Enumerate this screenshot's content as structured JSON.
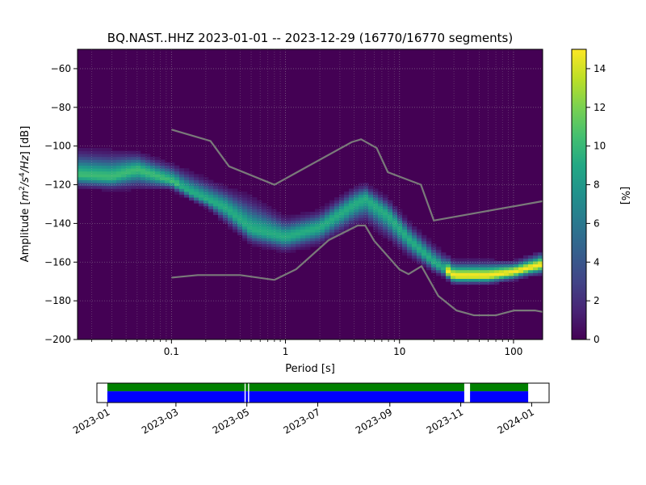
{
  "chart_data": {
    "type": "heatmap",
    "title": "BQ.NAST..HHZ   2023-01-01 -- 2023-12-29  (16770/16770 segments)",
    "xlabel": "Period [s]",
    "ylabel_prefix": "Amplitude [",
    "ylabel_unit_base": "m",
    "ylabel_sup1": "2",
    "ylabel_slash": "/s",
    "ylabel_sup2": "4",
    "ylabel_tail": "/Hz",
    "ylabel_suffix": "] [dB]",
    "x_scale": "log",
    "xlim": [
      0.015,
      180
    ],
    "ylim": [
      -200,
      -50
    ],
    "x_ticks": [
      {
        "value": 0.1,
        "label": "0.1"
      },
      {
        "value": 1,
        "label": "1"
      },
      {
        "value": 10,
        "label": "10"
      },
      {
        "value": 100,
        "label": "100"
      }
    ],
    "y_ticks": [
      {
        "value": -60,
        "label": "−60"
      },
      {
        "value": -80,
        "label": "−80"
      },
      {
        "value": -100,
        "label": "−100"
      },
      {
        "value": -120,
        "label": "−120"
      },
      {
        "value": -140,
        "label": "−140"
      },
      {
        "value": -160,
        "label": "−160"
      },
      {
        "value": -180,
        "label": "−180"
      },
      {
        "value": -200,
        "label": "−200"
      }
    ],
    "grid": true,
    "colormap": "viridis",
    "colorbar": {
      "label": "[%]",
      "range": [
        0,
        15
      ],
      "ticks": [
        {
          "value": 0,
          "label": "0"
        },
        {
          "value": 2,
          "label": "2"
        },
        {
          "value": 4,
          "label": "4"
        },
        {
          "value": 6,
          "label": "6"
        },
        {
          "value": 8,
          "label": "8"
        },
        {
          "value": 10,
          "label": "10"
        },
        {
          "value": 12,
          "label": "12"
        },
        {
          "value": 14,
          "label": "14"
        }
      ]
    },
    "density_ridge": {
      "description_free": true,
      "center_db": [
        [
          0.016,
          -115
        ],
        [
          0.03,
          -116
        ],
        [
          0.05,
          -112
        ],
        [
          0.1,
          -118
        ],
        [
          0.15,
          -124
        ],
        [
          0.3,
          -132
        ],
        [
          0.5,
          -143
        ],
        [
          1.0,
          -147
        ],
        [
          2.0,
          -142
        ],
        [
          4.0,
          -130
        ],
        [
          5.0,
          -127
        ],
        [
          8.0,
          -136
        ],
        [
          12.0,
          -148
        ],
        [
          20.0,
          -160
        ],
        [
          30.0,
          -167
        ],
        [
          60.0,
          -167
        ],
        [
          100.0,
          -165
        ],
        [
          180.0,
          -161
        ]
      ],
      "upper_db": [
        [
          0.016,
          -103
        ],
        [
          0.03,
          -104
        ],
        [
          0.05,
          -104
        ],
        [
          0.1,
          -110
        ],
        [
          0.2,
          -118
        ],
        [
          0.5,
          -128
        ],
        [
          1.0,
          -138
        ],
        [
          2.0,
          -134
        ],
        [
          4.0,
          -122
        ],
        [
          5.0,
          -120
        ],
        [
          8.0,
          -128
        ],
        [
          12.0,
          -140
        ],
        [
          20.0,
          -152
        ],
        [
          30.0,
          -160
        ],
        [
          100.0,
          -160
        ],
        [
          180.0,
          -155
        ]
      ],
      "lower_db": [
        [
          0.016,
          -121
        ],
        [
          0.03,
          -122
        ],
        [
          0.05,
          -121
        ],
        [
          0.1,
          -122
        ],
        [
          0.2,
          -131
        ],
        [
          0.5,
          -150
        ],
        [
          1.0,
          -154
        ],
        [
          2.0,
          -150
        ],
        [
          4.0,
          -140
        ],
        [
          5.0,
          -138
        ],
        [
          8.0,
          -147
        ],
        [
          12.0,
          -156
        ],
        [
          20.0,
          -165
        ],
        [
          30.0,
          -170
        ],
        [
          100.0,
          -168
        ],
        [
          180.0,
          -166
        ]
      ],
      "peak_percent": 15
    },
    "noise_models": {
      "color": "#7a7a7a",
      "high": [
        [
          0.1,
          -91.5
        ],
        [
          0.22,
          -97.4
        ],
        [
          0.32,
          -110.5
        ],
        [
          0.8,
          -120
        ],
        [
          3.8,
          -98
        ],
        [
          4.6,
          -96.5
        ],
        [
          6.3,
          -101
        ],
        [
          7.9,
          -113.5
        ],
        [
          15.4,
          -120
        ],
        [
          20,
          -138.5
        ],
        [
          180,
          -128.5
        ]
      ],
      "low": [
        [
          0.1,
          -168
        ],
        [
          0.17,
          -166.7
        ],
        [
          0.4,
          -166.7
        ],
        [
          0.8,
          -169.2
        ],
        [
          1.24,
          -163.7
        ],
        [
          2.4,
          -148.6
        ],
        [
          4.3,
          -141.1
        ],
        [
          5.0,
          -141.1
        ],
        [
          6.0,
          -149.0
        ],
        [
          10.0,
          -163.8
        ],
        [
          12.0,
          -166.2
        ],
        [
          15.6,
          -162.1
        ],
        [
          21.9,
          -177.5
        ],
        [
          31.6,
          -185.0
        ],
        [
          45.0,
          -187.5
        ],
        [
          70.0,
          -187.5
        ],
        [
          101.0,
          -185.0
        ],
        [
          154.0,
          -185.0
        ],
        [
          180.0,
          -185.7
        ]
      ]
    },
    "coverage": {
      "xlim": [
        "2022-12-23",
        "2024-01-16"
      ],
      "x_ticks": [
        "2023-01",
        "2023-03",
        "2023-05",
        "2023-07",
        "2023-09",
        "2023-11",
        "2024-01"
      ],
      "data_periods": [
        [
          "2023-01-01",
          "2023-04-29"
        ],
        [
          "2023-04-30",
          "2023-05-02"
        ],
        [
          "2023-05-03",
          "2023-11-04"
        ],
        [
          "2023-11-09",
          "2023-12-29"
        ]
      ],
      "colors": {
        "top": "#008000",
        "bottom": "#0000ff"
      }
    }
  }
}
